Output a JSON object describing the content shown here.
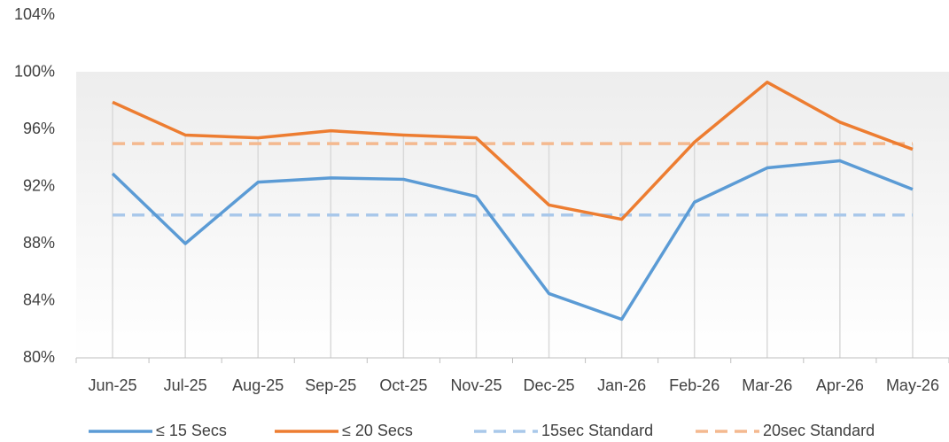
{
  "chart_data": {
    "type": "line",
    "categories": [
      "Jun-25",
      "Jul-25",
      "Aug-25",
      "Sep-25",
      "Oct-25",
      "Nov-25",
      "Dec-25",
      "Jan-26",
      "Feb-26",
      "Mar-26",
      "Apr-26",
      "May-26"
    ],
    "series": [
      {
        "name": "≤ 15 Secs",
        "color": "#5b9bd5",
        "dashed": false,
        "values": [
          92.9,
          88.0,
          92.3,
          92.6,
          92.5,
          91.3,
          84.5,
          82.7,
          90.9,
          93.3,
          93.8,
          91.8
        ]
      },
      {
        "name": "≤ 20 Secs",
        "color": "#ed7d31",
        "dashed": false,
        "values": [
          97.9,
          95.6,
          95.4,
          95.9,
          95.6,
          95.4,
          90.7,
          89.7,
          95.1,
          99.3,
          96.5,
          94.6
        ]
      },
      {
        "name": "15sec Standard",
        "color": "#a9c8ea",
        "dashed": true,
        "values": [
          90,
          90,
          90,
          90,
          90,
          90,
          90,
          90,
          90,
          90,
          90,
          90
        ]
      },
      {
        "name": "20sec Standard",
        "color": "#f4b98f",
        "dashed": true,
        "values": [
          95,
          95,
          95,
          95,
          95,
          95,
          95,
          95,
          95,
          95,
          95,
          95
        ]
      }
    ],
    "ylim": [
      80,
      104
    ],
    "yticks": [
      {
        "value": 80,
        "label": "80%"
      },
      {
        "value": 84,
        "label": "84%"
      },
      {
        "value": 88,
        "label": "88%"
      },
      {
        "value": 92,
        "label": "92%"
      },
      {
        "value": 96,
        "label": "96%"
      },
      {
        "value": 100,
        "label": "100%"
      },
      {
        "value": 104,
        "label": "104%"
      }
    ],
    "grid": false,
    "drop_lines": true,
    "legend": "bottom"
  }
}
